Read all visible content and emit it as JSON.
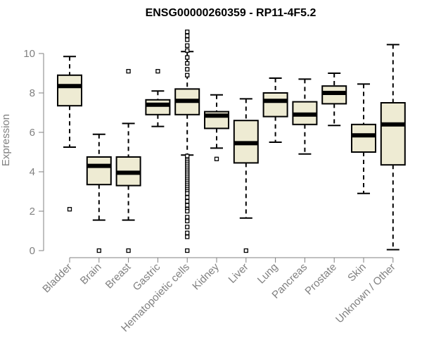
{
  "chart_data": {
    "type": "boxplot",
    "title": "ENSG00000260359 - RP11-4F5.2",
    "xlabel": "",
    "ylabel": "Expression",
    "ylim": [
      0,
      11.3
    ],
    "yticks": [
      0,
      2,
      4,
      6,
      8,
      10
    ],
    "box_fill": "#eeebd3",
    "categories": [
      "Bladder",
      "Brain",
      "Breast",
      "Gastric",
      "Hematopoietic cells",
      "Kidney",
      "Liver",
      "Lung",
      "Pancreas",
      "Prostate",
      "Skin",
      "Unknown / Other"
    ],
    "boxes": [
      {
        "name": "Bladder",
        "whisker_low": 5.25,
        "q1": 7.35,
        "median": 8.35,
        "q3": 8.9,
        "whisker_high": 9.85,
        "outliers": [
          2.1
        ]
      },
      {
        "name": "Brain",
        "whisker_low": 1.55,
        "q1": 3.35,
        "median": 4.3,
        "q3": 4.75,
        "whisker_high": 5.9,
        "outliers": [
          0
        ]
      },
      {
        "name": "Breast",
        "whisker_low": 1.55,
        "q1": 3.3,
        "median": 3.95,
        "q3": 4.75,
        "whisker_high": 6.45,
        "outliers": [
          0,
          9.1
        ]
      },
      {
        "name": "Gastric",
        "whisker_low": 6.3,
        "q1": 6.9,
        "median": 7.4,
        "q3": 7.65,
        "whisker_high": 8.1,
        "outliers": [
          9.1
        ]
      },
      {
        "name": "Hematopoietic cells",
        "whisker_low": 4.85,
        "q1": 6.9,
        "median": 7.6,
        "q3": 8.2,
        "whisker_high": 10.1,
        "outliers": [
          11.1,
          10.9,
          10.7,
          10.4,
          10.15,
          9.8,
          9.5,
          9.2,
          8.9,
          4.8,
          4.6,
          4.5,
          4.4,
          4.3,
          4.2,
          4.1,
          4.0,
          3.9,
          3.8,
          3.7,
          3.6,
          3.5,
          3.4,
          3.3,
          3.2,
          3.1,
          3.0,
          2.9,
          2.7,
          2.5,
          2.3,
          2.1,
          2.0,
          1.7,
          1.5,
          1.2,
          0.9,
          0.7,
          0.0
        ]
      },
      {
        "name": "Kidney",
        "whisker_low": 5.2,
        "q1": 6.2,
        "median": 6.85,
        "q3": 7.05,
        "whisker_high": 7.9,
        "outliers": [
          4.65
        ]
      },
      {
        "name": "Liver",
        "whisker_low": 1.65,
        "q1": 4.45,
        "median": 5.45,
        "q3": 6.6,
        "whisker_high": 7.7,
        "outliers": [
          0
        ]
      },
      {
        "name": "Lung",
        "whisker_low": 5.5,
        "q1": 6.8,
        "median": 7.6,
        "q3": 8.0,
        "whisker_high": 8.75,
        "outliers": []
      },
      {
        "name": "Pancreas",
        "whisker_low": 4.9,
        "q1": 6.4,
        "median": 6.9,
        "q3": 7.55,
        "whisker_high": 8.7,
        "outliers": []
      },
      {
        "name": "Prostate",
        "whisker_low": 6.35,
        "q1": 7.45,
        "median": 8.0,
        "q3": 8.35,
        "whisker_high": 9.0,
        "outliers": []
      },
      {
        "name": "Skin",
        "whisker_low": 2.9,
        "q1": 5.0,
        "median": 5.85,
        "q3": 6.4,
        "whisker_high": 8.45,
        "outliers": []
      },
      {
        "name": "Unknown / Other",
        "whisker_low": 0.05,
        "q1": 4.35,
        "median": 6.4,
        "q3": 7.5,
        "whisker_high": 10.45,
        "outliers": []
      }
    ]
  }
}
